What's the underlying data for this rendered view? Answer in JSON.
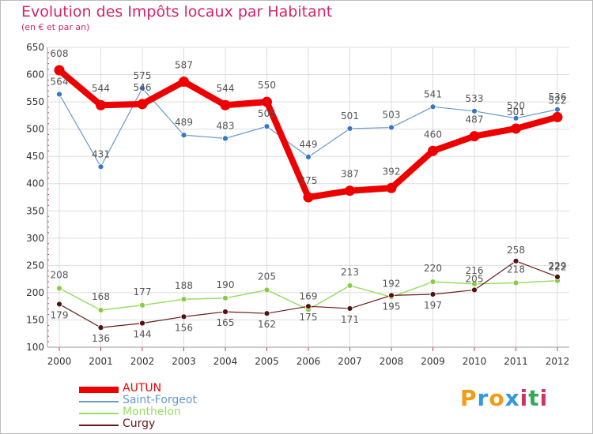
{
  "chart_data": {
    "type": "line",
    "title": "Evolution des Impôts locaux par Habitant",
    "subtitle": "(en € et par an)",
    "xlabel": "",
    "ylabel": "",
    "categories": [
      "2000",
      "2001",
      "2002",
      "2003",
      "2004",
      "2005",
      "2006",
      "2007",
      "2008",
      "2009",
      "2010",
      "2011",
      "2012"
    ],
    "ylim": [
      100,
      650
    ],
    "yticks": [
      100,
      150,
      200,
      250,
      300,
      350,
      400,
      450,
      500,
      550,
      600,
      650
    ],
    "grid": true,
    "legend_position": "bottom-left",
    "series": [
      {
        "name": "AUTUN",
        "color": "#ee0000",
        "values": [
          608,
          544,
          546,
          587,
          544,
          550,
          375,
          387,
          392,
          460,
          487,
          501,
          522
        ],
        "labels": [
          "608",
          "544",
          "546",
          "587",
          "544",
          "550",
          "375",
          "387",
          "392",
          "460",
          "487",
          "501",
          "522"
        ]
      },
      {
        "name": "Saint-Forgeot",
        "color": "#6699cc",
        "values": [
          564,
          431,
          575,
          489,
          483,
          505,
          449,
          501,
          503,
          541,
          533,
          520,
          536
        ],
        "labels": [
          "564",
          "431",
          "575",
          "489",
          "483",
          "505",
          "449",
          "501",
          "503",
          "541",
          "533",
          "520",
          "536"
        ]
      },
      {
        "name": "Monthelon",
        "color": "#99dd66",
        "values": [
          208,
          168,
          177,
          188,
          190,
          205,
          169,
          213,
          192,
          220,
          216,
          218,
          222
        ],
        "labels": [
          "208",
          "168",
          "177",
          "188",
          "190",
          "205",
          "169",
          "213",
          "192",
          "220",
          "216",
          "218",
          "222"
        ]
      },
      {
        "name": "Curgy",
        "color": "#6b1a1a",
        "values": [
          179,
          136,
          144,
          156,
          165,
          162,
          175,
          171,
          195,
          197,
          205,
          258,
          229
        ],
        "labels": [
          "179",
          "136",
          "144",
          "156",
          "165",
          "162",
          "175",
          "171",
          "195",
          "197",
          "205",
          "258",
          "229"
        ]
      }
    ]
  },
  "logo": {
    "letters": [
      "P",
      "r",
      "o",
      "x",
      "i",
      "t",
      "i"
    ],
    "colors": [
      "#f39c12",
      "#3399dd",
      "#f39c12",
      "#3399dd",
      "#cc3366",
      "#33aa55",
      "#cc3366"
    ]
  }
}
